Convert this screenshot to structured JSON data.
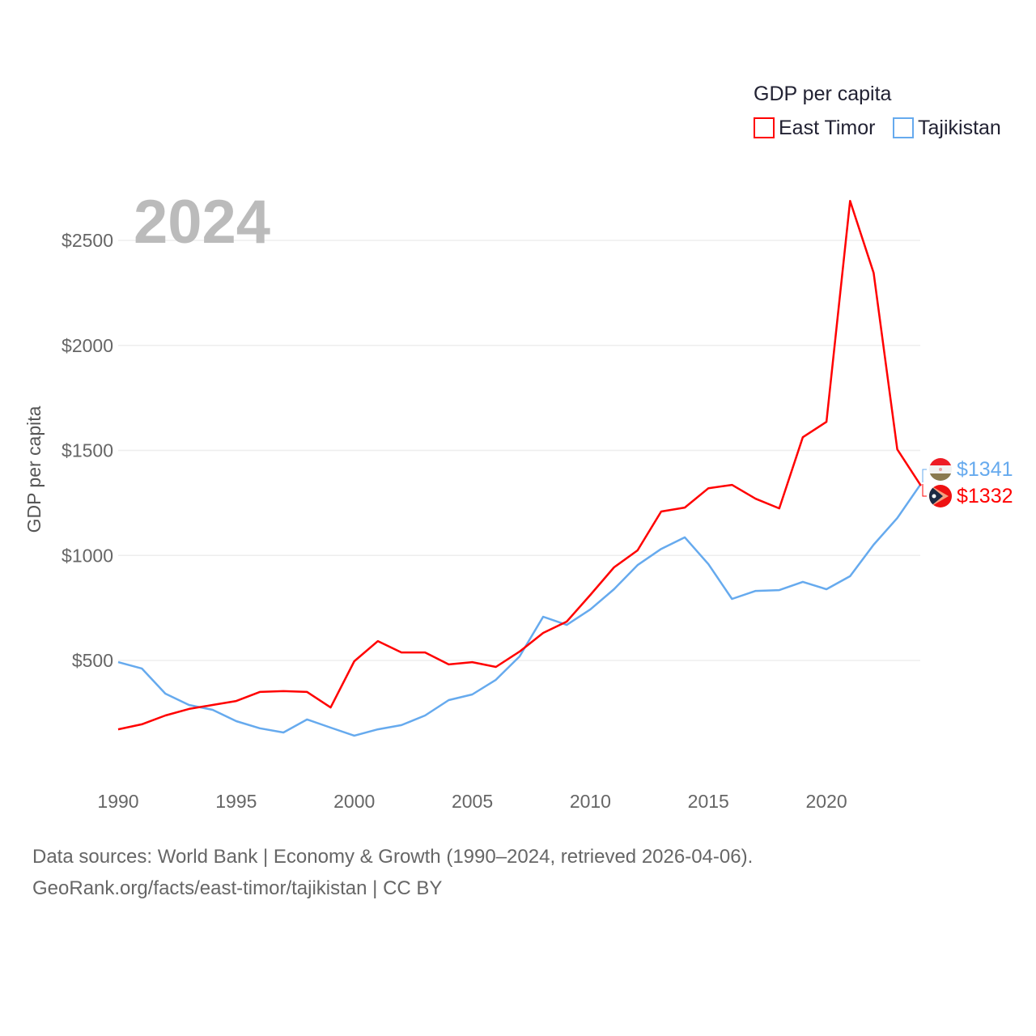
{
  "chart_data": {
    "type": "line",
    "title": "GDP per capita",
    "ylabel": "GDP per capita",
    "xlabel": "",
    "year_label": "2024",
    "xlim": [
      1990,
      2024
    ],
    "ylim": [
      0,
      2750
    ],
    "x_ticks": [
      "1990",
      "1995",
      "2000",
      "2005",
      "2010",
      "2015",
      "2020"
    ],
    "y_ticks": [
      {
        "value": 500,
        "label": "$500"
      },
      {
        "value": 1000,
        "label": "$1000"
      },
      {
        "value": 1500,
        "label": "$1500"
      },
      {
        "value": 2000,
        "label": "$2000"
      },
      {
        "value": 2500,
        "label": "$2500"
      }
    ],
    "grid": true,
    "legend_position": "top-right",
    "x": [
      1990,
      1991,
      1992,
      1993,
      1994,
      1995,
      1996,
      1997,
      1998,
      1999,
      2000,
      2001,
      2002,
      2003,
      2004,
      2005,
      2006,
      2007,
      2008,
      2009,
      2010,
      2011,
      2012,
      2013,
      2014,
      2015,
      2016,
      2017,
      2018,
      2019,
      2020,
      2021,
      2022,
      2023,
      2024
    ],
    "series": [
      {
        "name": "East Timor",
        "color": "#ff0000",
        "end_label": "$1332",
        "values": [
          172,
          196,
          238,
          269,
          288,
          307,
          350,
          354,
          350,
          276,
          496,
          592,
          538,
          538,
          481,
          492,
          469,
          542,
          631,
          685,
          812,
          943,
          1024,
          1209,
          1228,
          1320,
          1336,
          1270,
          1224,
          1563,
          1636,
          2688,
          2345,
          1505,
          1332
        ]
      },
      {
        "name": "Tajikistan",
        "color": "#66aaee",
        "end_label": "$1341",
        "values": [
          492,
          462,
          342,
          288,
          265,
          211,
          177,
          157,
          219,
          180,
          142,
          172,
          192,
          238,
          311,
          338,
          408,
          519,
          708,
          669,
          743,
          839,
          954,
          1031,
          1086,
          958,
          793,
          831,
          835,
          874,
          839,
          901,
          1051,
          1178,
          1341
        ]
      }
    ]
  },
  "footer": {
    "line1": "Data sources: World Bank | Economy & Growth (1990–2024, retrieved 2026-04-06).",
    "line2": "GeoRank.org/facts/east-timor/tajikistan | CC BY"
  }
}
